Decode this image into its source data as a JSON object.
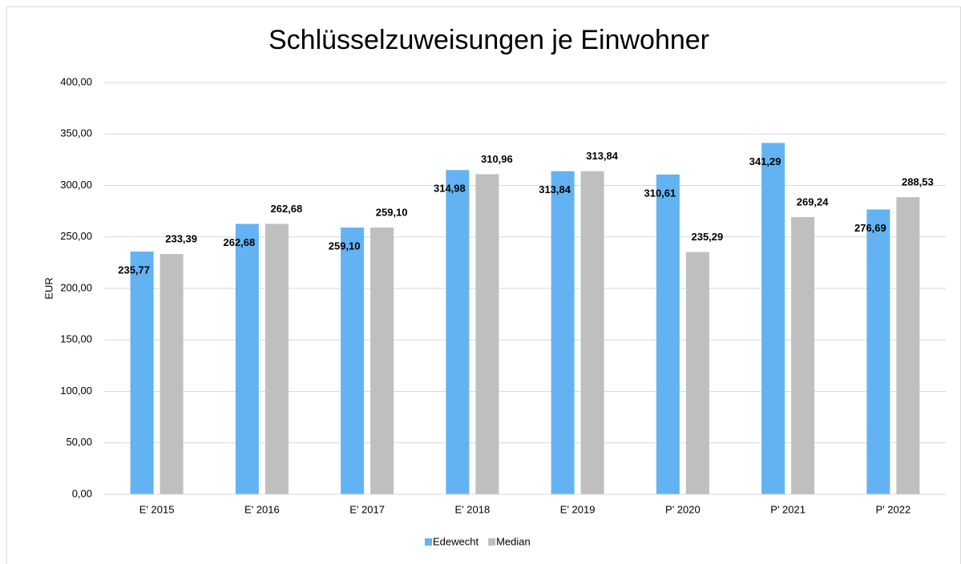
{
  "chart_data": {
    "type": "bar",
    "title": "Schlüsselzuweisungen je Einwohner",
    "y_label": "EUR",
    "categories": [
      "E' 2015",
      "E' 2016",
      "E' 2017",
      "E' 2018",
      "E' 2019",
      "P' 2020",
      "P' 2021",
      "P' 2022"
    ],
    "series": [
      {
        "name": "Edewecht",
        "color": "#63b3f2",
        "values": [
          235.77,
          262.68,
          259.1,
          314.98,
          313.84,
          310.61,
          341.29,
          276.69
        ],
        "value_labels": [
          "235,77",
          "262,68",
          "259,10",
          "314,98",
          "313,84",
          "310,61",
          "341,29",
          "276,69"
        ]
      },
      {
        "name": "Median",
        "color": "#bfbfbf",
        "values": [
          233.39,
          262.68,
          259.1,
          310.96,
          313.84,
          235.29,
          269.24,
          288.53
        ],
        "value_labels": [
          "233,39",
          "262,68",
          "259,10",
          "310,96",
          "313,84",
          "235,29",
          "269,24",
          "288,53"
        ]
      }
    ],
    "ylim": [
      0,
      400
    ],
    "yticks": [
      {
        "value": 0,
        "label": "0,00"
      },
      {
        "value": 50,
        "label": "50,00"
      },
      {
        "value": 100,
        "label": "100,00"
      },
      {
        "value": 150,
        "label": "150,00"
      },
      {
        "value": 200,
        "label": "200,00"
      },
      {
        "value": 250,
        "label": "250,00"
      },
      {
        "value": 300,
        "label": "300,00"
      },
      {
        "value": 350,
        "label": "350,00"
      },
      {
        "value": 400,
        "label": "400,00"
      }
    ],
    "grid": true,
    "legend": "bottom"
  }
}
